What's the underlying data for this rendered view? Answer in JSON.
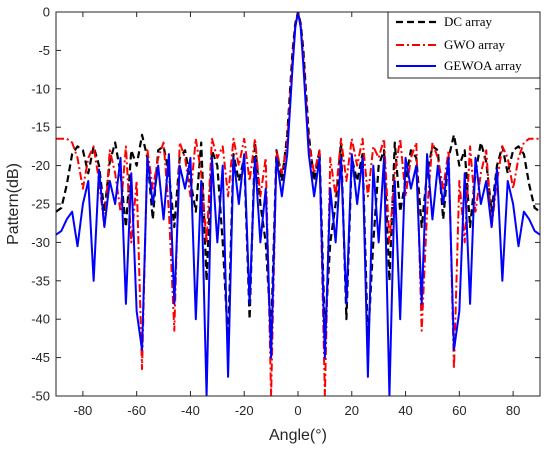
{
  "chart_data": {
    "type": "line",
    "title": "",
    "xlabel": "Angle(°)",
    "ylabel": "Pattern(dB)",
    "xlim": [
      -90,
      90
    ],
    "ylim": [
      -50,
      0
    ],
    "xticks": [
      -80,
      -60,
      -40,
      -20,
      0,
      20,
      40,
      60,
      80
    ],
    "yticks": [
      0,
      -5,
      -10,
      -15,
      -20,
      -25,
      -30,
      -35,
      -40,
      -45,
      -50
    ],
    "xtick_labels": [
      "-80",
      "-60",
      "-40",
      "-20",
      "0",
      "20",
      "40",
      "60",
      "80"
    ],
    "ytick_labels": [
      "0",
      "-5",
      "-10",
      "-15",
      "-20",
      "-25",
      "-30",
      "-35",
      "-40",
      "-45",
      "-50"
    ],
    "grid": false,
    "legend_position": "top-right",
    "series": [
      {
        "name": "DC array",
        "color": "#000000",
        "style": "dashed",
        "x": [
          -90,
          -88,
          -86,
          -84,
          -82,
          -80,
          -78,
          -76,
          -74,
          -72,
          -70,
          -68,
          -66,
          -64,
          -62,
          -60,
          -58,
          -56,
          -54,
          -52,
          -50,
          -48,
          -46,
          -44,
          -42,
          -40,
          -38,
          -36,
          -34,
          -32,
          -30,
          -28,
          -26,
          -24,
          -22,
          -20,
          -18,
          -16,
          -14,
          -12,
          -10,
          -8,
          -6,
          -4,
          -2,
          -1,
          0,
          1,
          2,
          4,
          6,
          8,
          10,
          12,
          14,
          16,
          18,
          20,
          22,
          24,
          26,
          28,
          30,
          32,
          34,
          36,
          38,
          40,
          42,
          44,
          46,
          48,
          50,
          52,
          54,
          56,
          58,
          60,
          62,
          64,
          66,
          68,
          70,
          72,
          74,
          76,
          78,
          80,
          82,
          84,
          86,
          88,
          90
        ],
        "y": [
          -26,
          -25.5,
          -22.5,
          -18.5,
          -17.5,
          -18,
          -21,
          -17.5,
          -20,
          -26,
          -19.5,
          -17,
          -21,
          -28,
          -18,
          -20,
          -16,
          -19,
          -27,
          -18,
          -17.5,
          -21,
          -28,
          -19,
          -18,
          -22,
          -26,
          -17,
          -35,
          -18,
          -20,
          -30,
          -43,
          -18.5,
          -22,
          -19,
          -40,
          -17,
          -25,
          -30,
          -42,
          -18,
          -22,
          -16,
          -5,
          -1.5,
          0,
          -1.5,
          -5,
          -16,
          -22,
          -18,
          -42,
          -30,
          -25,
          -17,
          -40,
          -19,
          -22,
          -18.5,
          -43,
          -30,
          -20,
          -18,
          -35,
          -17,
          -26,
          -22,
          -18,
          -19,
          -28,
          -21,
          -17.5,
          -18,
          -27,
          -19,
          -16,
          -20,
          -18,
          -28,
          -21,
          -17,
          -19.5,
          -26,
          -20,
          -17.5,
          -21,
          -18,
          -17.5,
          -18.5,
          -22.5,
          -25.5,
          -26
        ]
      },
      {
        "name": "GWO array",
        "color": "#ff0000",
        "style": "dashdot",
        "x": [
          -90,
          -88,
          -86,
          -84,
          -82,
          -80,
          -78,
          -76,
          -74,
          -72,
          -70,
          -68,
          -66,
          -64,
          -62,
          -60,
          -58,
          -56,
          -54,
          -52,
          -50,
          -48,
          -46,
          -44,
          -42,
          -40,
          -38,
          -36,
          -34,
          -32,
          -30,
          -28,
          -26,
          -24,
          -22,
          -20,
          -18,
          -16,
          -14,
          -12,
          -10,
          -8,
          -6,
          -4,
          -2,
          -1,
          0,
          1,
          2,
          4,
          6,
          8,
          10,
          12,
          14,
          16,
          18,
          20,
          22,
          24,
          26,
          28,
          30,
          32,
          34,
          36,
          38,
          40,
          42,
          44,
          46,
          48,
          50,
          52,
          54,
          56,
          58,
          60,
          62,
          64,
          66,
          68,
          70,
          72,
          74,
          76,
          78,
          80,
          82,
          84,
          86,
          88,
          90
        ],
        "y": [
          -16.5,
          -16.5,
          -16.5,
          -17,
          -19,
          -23,
          -19,
          -17.5,
          -22,
          -28,
          -18,
          -21,
          -26,
          -17.5,
          -30,
          -22,
          -46.5,
          -18,
          -23,
          -19,
          -17,
          -26,
          -41.5,
          -17,
          -19,
          -24,
          -16.5,
          -21,
          -30,
          -16.5,
          -19,
          -17.5,
          -24,
          -16.5,
          -20,
          -16.5,
          -22,
          -16.5,
          -24,
          -19,
          -50,
          -18,
          -21,
          -17,
          -6,
          -1.8,
          0,
          -1.8,
          -6,
          -17,
          -21,
          -18,
          -50,
          -19,
          -24,
          -16.5,
          -22,
          -16.5,
          -20,
          -16.5,
          -24,
          -17.5,
          -19,
          -16.5,
          -30,
          -21,
          -16.5,
          -24,
          -19,
          -17,
          -41.5,
          -26,
          -17,
          -19,
          -23,
          -18,
          -46.5,
          -22,
          -30,
          -17.5,
          -26,
          -21,
          -18,
          -28,
          -22,
          -17.5,
          -19,
          -23,
          -19,
          -17,
          -16.5,
          -16.5,
          -16.5
        ]
      },
      {
        "name": "GEWOA array",
        "color": "#0000ff",
        "style": "solid",
        "x": [
          -90,
          -88,
          -86,
          -84,
          -82,
          -80,
          -78,
          -76,
          -74,
          -72,
          -70,
          -68,
          -66,
          -64,
          -62,
          -60,
          -58,
          -56,
          -54,
          -52,
          -50,
          -48,
          -46,
          -44,
          -42,
          -40,
          -38,
          -36,
          -34,
          -32,
          -30,
          -28,
          -26,
          -24,
          -22,
          -20,
          -18,
          -16,
          -14,
          -12,
          -10,
          -8,
          -6,
          -4,
          -2,
          -1,
          0,
          1,
          2,
          4,
          6,
          8,
          10,
          12,
          14,
          16,
          18,
          20,
          22,
          24,
          26,
          28,
          30,
          32,
          34,
          36,
          38,
          40,
          42,
          44,
          46,
          48,
          50,
          52,
          54,
          56,
          58,
          60,
          62,
          64,
          66,
          68,
          70,
          72,
          74,
          76,
          78,
          80,
          82,
          84,
          86,
          88,
          90
        ],
        "y": [
          -29,
          -28.5,
          -27,
          -26,
          -30.5,
          -25,
          -22,
          -35,
          -20.5,
          -28,
          -22,
          -25,
          -19,
          -38,
          -21,
          -39,
          -44,
          -19,
          -25,
          -20,
          -27,
          -18.5,
          -38,
          -20,
          -23,
          -19,
          -40,
          -22,
          -50,
          -19,
          -30,
          -20,
          -47.5,
          -19,
          -25,
          -18.5,
          -38,
          -19,
          -30,
          -23,
          -45,
          -19,
          -24,
          -18.5,
          -7,
          -2,
          0,
          -2,
          -7,
          -18.5,
          -24,
          -19,
          -45,
          -23,
          -30,
          -19,
          -38,
          -18.5,
          -25,
          -19,
          -47.5,
          -20,
          -30,
          -19,
          -50,
          -22,
          -40,
          -19,
          -23,
          -20,
          -38,
          -18.5,
          -27,
          -20,
          -25,
          -19,
          -44,
          -39,
          -21,
          -38,
          -19,
          -25,
          -22,
          -28,
          -20.5,
          -35,
          -22,
          -25,
          -30.5,
          -26,
          -27,
          -28.5,
          -29
        ]
      }
    ]
  }
}
